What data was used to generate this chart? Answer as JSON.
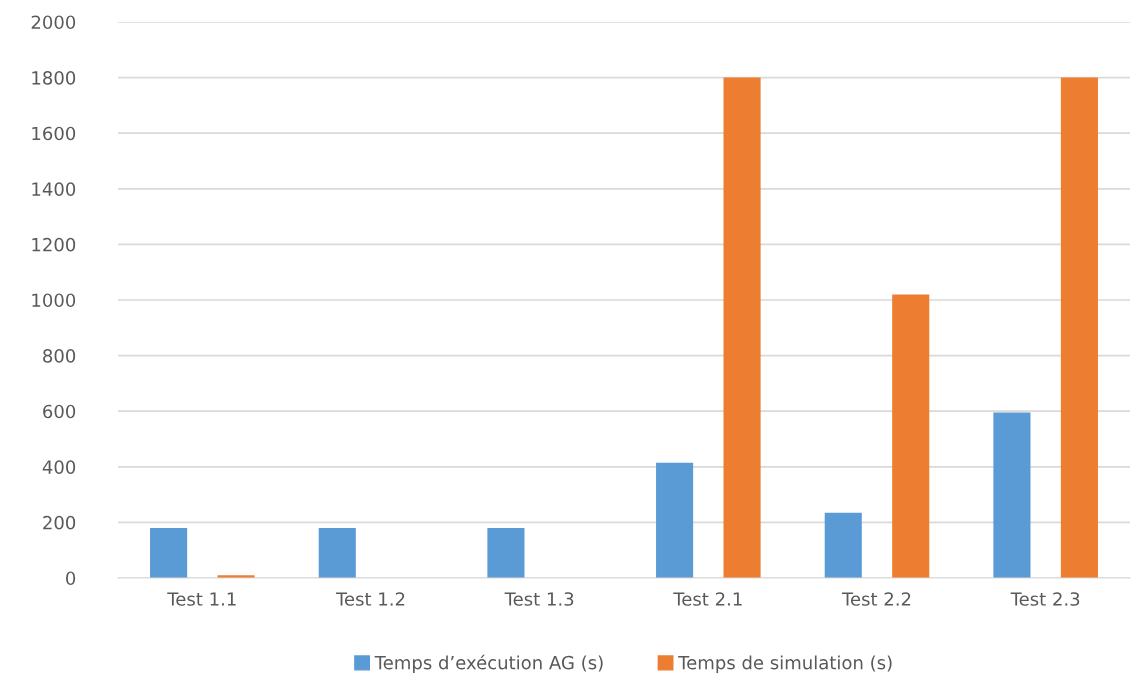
{
  "chart_data": {
    "type": "bar",
    "categories": [
      "Test 1.1",
      "Test 1.2",
      "Test 1.3",
      "Test 2.1",
      "Test 2.2",
      "Test 2.3"
    ],
    "series": [
      {
        "name": "Temps d’exécution AG (s)",
        "color": "#5b9bd5",
        "values": [
          180,
          180,
          180,
          415,
          235,
          595
        ]
      },
      {
        "name": "Temps de simulation (s)",
        "color": "#ed7d31",
        "values": [
          10,
          null,
          null,
          1800,
          1020,
          1800
        ]
      }
    ],
    "ylim": [
      0,
      2000
    ],
    "yticks": [
      0,
      200,
      400,
      600,
      800,
      1000,
      1200,
      1400,
      1600,
      1800,
      2000
    ],
    "grid": "y",
    "legend": "bottom"
  }
}
